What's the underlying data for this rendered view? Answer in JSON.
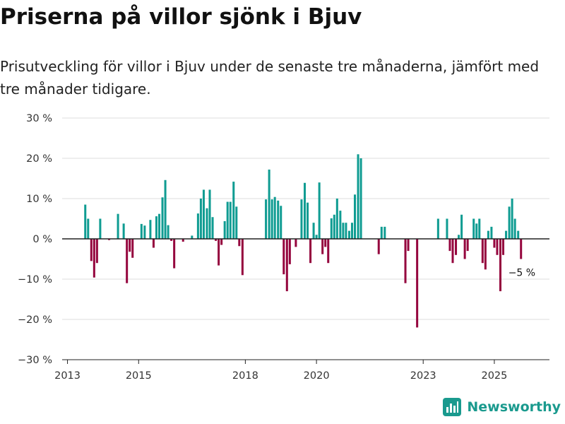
{
  "title": "Priserna på villor sjönk i Bjuv",
  "subtitle": "Prisutveckling för villor i Bjuv under de senaste tre månaderna, jämfört med tre månader tidigare.",
  "brand": {
    "name": "Newsworthy",
    "icon": "bar-chart-logo-icon"
  },
  "colors": {
    "positive": "#0f9c92",
    "negative": "#95063e",
    "grid": "#dddddd",
    "zero": "#222222",
    "brand": "#1a9a8e"
  },
  "chart_data": {
    "type": "bar",
    "title": "Priserna på villor sjönk i Bjuv",
    "xlabel": "",
    "ylabel": "",
    "ylim": [
      -30,
      30
    ],
    "yticks": [
      30,
      20,
      10,
      0,
      -10,
      -20,
      -30
    ],
    "ytick_labels": [
      "30 %",
      "20 %",
      "10 %",
      "0 %",
      "−10 %",
      "−20 %",
      "−30 %"
    ],
    "xlim": [
      2012.85,
      2026.55
    ],
    "xticks": [
      2013,
      2015,
      2018,
      2020,
      2023,
      2025
    ],
    "xtick_labels": [
      "2013",
      "2015",
      "2018",
      "2020",
      "2023",
      "2025"
    ],
    "annotation": {
      "x": 2025.75,
      "y": -5,
      "text": "−5 %"
    },
    "bar_width_years": 0.06,
    "series": [
      {
        "name": "Prisutveckling",
        "points": [
          {
            "x": 2013.5,
            "y": 8.5
          },
          {
            "x": 2013.58,
            "y": 5
          },
          {
            "x": 2013.67,
            "y": -5.5
          },
          {
            "x": 2013.75,
            "y": -9.6
          },
          {
            "x": 2013.83,
            "y": -6
          },
          {
            "x": 2013.92,
            "y": 5
          },
          {
            "x": 2014.17,
            "y": -0.3
          },
          {
            "x": 2014.42,
            "y": 6.2
          },
          {
            "x": 2014.58,
            "y": 3.8
          },
          {
            "x": 2014.67,
            "y": -11
          },
          {
            "x": 2014.75,
            "y": -3.2
          },
          {
            "x": 2014.83,
            "y": -4.7
          },
          {
            "x": 2015.08,
            "y": 3.7
          },
          {
            "x": 2015.17,
            "y": 3.3
          },
          {
            "x": 2015.33,
            "y": 4.7
          },
          {
            "x": 2015.42,
            "y": -2.2
          },
          {
            "x": 2015.5,
            "y": 5.6
          },
          {
            "x": 2015.58,
            "y": 6.2
          },
          {
            "x": 2015.67,
            "y": 10.3
          },
          {
            "x": 2015.75,
            "y": 14.6
          },
          {
            "x": 2015.83,
            "y": 3.4
          },
          {
            "x": 2015.92,
            "y": -0.5
          },
          {
            "x": 2016.0,
            "y": -7.3
          },
          {
            "x": 2016.25,
            "y": -0.7
          },
          {
            "x": 2016.5,
            "y": 0.8
          },
          {
            "x": 2016.67,
            "y": 6.3
          },
          {
            "x": 2016.75,
            "y": 10
          },
          {
            "x": 2016.83,
            "y": 12.2
          },
          {
            "x": 2016.92,
            "y": 7.6
          },
          {
            "x": 2017.0,
            "y": 12.2
          },
          {
            "x": 2017.08,
            "y": 5.4
          },
          {
            "x": 2017.17,
            "y": -0.5
          },
          {
            "x": 2017.25,
            "y": -6.6
          },
          {
            "x": 2017.33,
            "y": -1.5
          },
          {
            "x": 2017.42,
            "y": 4.4
          },
          {
            "x": 2017.5,
            "y": 9.2
          },
          {
            "x": 2017.58,
            "y": 9.2
          },
          {
            "x": 2017.67,
            "y": 14.2
          },
          {
            "x": 2017.75,
            "y": 8
          },
          {
            "x": 2017.83,
            "y": -1.8
          },
          {
            "x": 2017.92,
            "y": -9
          },
          {
            "x": 2018.58,
            "y": 9.8
          },
          {
            "x": 2018.67,
            "y": 17.2
          },
          {
            "x": 2018.75,
            "y": 9.8
          },
          {
            "x": 2018.83,
            "y": 10.4
          },
          {
            "x": 2018.92,
            "y": 9.5
          },
          {
            "x": 2019.0,
            "y": 8.2
          },
          {
            "x": 2019.08,
            "y": -8.8
          },
          {
            "x": 2019.17,
            "y": -13
          },
          {
            "x": 2019.25,
            "y": -6.3
          },
          {
            "x": 2019.42,
            "y": -2
          },
          {
            "x": 2019.58,
            "y": 9.8
          },
          {
            "x": 2019.67,
            "y": 13.9
          },
          {
            "x": 2019.75,
            "y": 9
          },
          {
            "x": 2019.83,
            "y": -6
          },
          {
            "x": 2019.92,
            "y": 4
          },
          {
            "x": 2020.0,
            "y": 1
          },
          {
            "x": 2020.08,
            "y": 14
          },
          {
            "x": 2020.17,
            "y": -3.8
          },
          {
            "x": 2020.25,
            "y": -2
          },
          {
            "x": 2020.33,
            "y": -6
          },
          {
            "x": 2020.42,
            "y": 5.1
          },
          {
            "x": 2020.5,
            "y": 6
          },
          {
            "x": 2020.58,
            "y": 10
          },
          {
            "x": 2020.67,
            "y": 7
          },
          {
            "x": 2020.75,
            "y": 4
          },
          {
            "x": 2020.83,
            "y": 4
          },
          {
            "x": 2020.92,
            "y": 2
          },
          {
            "x": 2021.0,
            "y": 4
          },
          {
            "x": 2021.08,
            "y": 11
          },
          {
            "x": 2021.17,
            "y": 21
          },
          {
            "x": 2021.25,
            "y": 20
          },
          {
            "x": 2021.75,
            "y": -3.8
          },
          {
            "x": 2021.83,
            "y": 3
          },
          {
            "x": 2021.92,
            "y": 3
          },
          {
            "x": 2022.5,
            "y": -11
          },
          {
            "x": 2022.58,
            "y": -3
          },
          {
            "x": 2022.83,
            "y": -22
          },
          {
            "x": 2023.42,
            "y": 5
          },
          {
            "x": 2023.67,
            "y": 5
          },
          {
            "x": 2023.75,
            "y": -3
          },
          {
            "x": 2023.83,
            "y": -6
          },
          {
            "x": 2023.92,
            "y": -4
          },
          {
            "x": 2024.0,
            "y": 1
          },
          {
            "x": 2024.08,
            "y": 6
          },
          {
            "x": 2024.17,
            "y": -5
          },
          {
            "x": 2024.25,
            "y": -3
          },
          {
            "x": 2024.42,
            "y": 5
          },
          {
            "x": 2024.5,
            "y": 3.8
          },
          {
            "x": 2024.58,
            "y": 5
          },
          {
            "x": 2024.67,
            "y": -6
          },
          {
            "x": 2024.75,
            "y": -7.6
          },
          {
            "x": 2024.83,
            "y": 2
          },
          {
            "x": 2024.92,
            "y": 3
          },
          {
            "x": 2025.0,
            "y": -2.2
          },
          {
            "x": 2025.08,
            "y": -4
          },
          {
            "x": 2025.17,
            "y": -13
          },
          {
            "x": 2025.25,
            "y": -4
          },
          {
            "x": 2025.33,
            "y": 2
          },
          {
            "x": 2025.42,
            "y": 8
          },
          {
            "x": 2025.5,
            "y": 10
          },
          {
            "x": 2025.58,
            "y": 5
          },
          {
            "x": 2025.67,
            "y": 2
          },
          {
            "x": 2025.75,
            "y": -5
          }
        ]
      }
    ]
  }
}
